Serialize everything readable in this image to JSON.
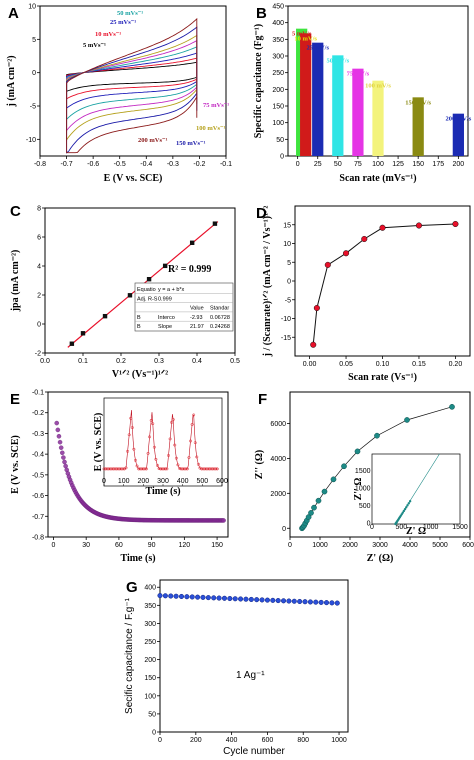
{
  "chart_data": [
    {
      "panel": "A",
      "type": "line",
      "xlabel": "E (V vs. SCE)",
      "ylabel": "j (mA cm⁻²)",
      "xlim": [
        -0.8,
        -0.1
      ],
      "ylim": [
        -12.5,
        10
      ],
      "xticks": [
        "-0.8",
        "-0.7",
        "-0.6",
        "-0.5",
        "-0.4",
        "-0.3",
        "-0.2",
        "-0.1"
      ],
      "yticks": [
        "-10",
        "-5",
        "0",
        "5",
        "10"
      ],
      "series": [
        {
          "label": "5 mVs⁻¹",
          "amp": 1.0,
          "color": "#000000"
        },
        {
          "label": "10 mVs⁻¹",
          "amp": 1.4,
          "color": "#e8102a"
        },
        {
          "label": "25 mVs⁻¹",
          "amp": 1.9,
          "color": "#1d1db8"
        },
        {
          "label": "50 mVs⁻¹",
          "amp": 2.5,
          "color": "#1aa3a3"
        },
        {
          "label": "75 mVs⁻¹",
          "amp": 3.1,
          "color": "#c228c2"
        },
        {
          "label": "100 mVs⁻¹",
          "amp": 3.6,
          "color": "#b5a11c"
        },
        {
          "label": "150 mVs⁻¹",
          "amp": 4.4,
          "color": "#1a1aa8"
        },
        {
          "label": "200 mVs⁻¹",
          "amp": 5.2,
          "color": "#8b1a1a"
        }
      ]
    },
    {
      "panel": "B",
      "type": "bar",
      "xlabel": "Scan rate (mVs⁻¹)",
      "ylabel": "Specific capacitance (Fg⁻¹)",
      "xlim": [
        -12,
        212
      ],
      "ylim": [
        0,
        450
      ],
      "xticks": [
        "0",
        "25",
        "50",
        "75",
        "100",
        "125",
        "150",
        "175",
        "200"
      ],
      "yticks": [
        "0",
        "50",
        "100",
        "150",
        "200",
        "250",
        "300",
        "350",
        "400",
        "450"
      ],
      "bars": [
        {
          "x": 5,
          "value": 382,
          "label": "5 mV/s",
          "color": "#3ee43e",
          "labelColor": "#d11a1a"
        },
        {
          "x": 10,
          "value": 368,
          "label": "10 mV/s",
          "color": "#d11a1a",
          "labelColor": "#e0e000"
        },
        {
          "x": 25,
          "value": 340,
          "label": "25 mV/s",
          "color": "#1b2bb3",
          "labelColor": "#1b2bb3"
        },
        {
          "x": 50,
          "value": 302,
          "label": "50 mV/s",
          "color": "#2fe5e5",
          "labelColor": "#2fe5e5"
        },
        {
          "x": 75,
          "value": 262,
          "label": "75 mV/s",
          "color": "#e534e5",
          "labelColor": "#e534e5"
        },
        {
          "x": 100,
          "value": 226,
          "label": "100 mV/s",
          "color": "#f3f37c",
          "labelColor": "#e0d440"
        },
        {
          "x": 150,
          "value": 176,
          "label": "150 mV/s",
          "color": "#8a8a12",
          "labelColor": "#8a8a12"
        },
        {
          "x": 200,
          "value": 127,
          "label": "200 mV/s",
          "color": "#1b2bb3",
          "labelColor": "#1b2bb3"
        }
      ]
    },
    {
      "panel": "C",
      "type": "scatter",
      "xlabel": "V¹ᐟ² (Vs⁻¹)¹ᐟ²",
      "ylabel": "jpa (mA cm⁻²)",
      "xlim": [
        0.0,
        0.5
      ],
      "ylim": [
        -2,
        8
      ],
      "xticks": [
        "0.0",
        "0.1",
        "0.2",
        "0.3",
        "0.4",
        "0.5"
      ],
      "yticks": [
        "-2",
        "0",
        "2",
        "4",
        "6",
        "8"
      ],
      "x": [
        0.0707,
        0.1,
        0.158,
        0.2236,
        0.2739,
        0.3162,
        0.3873,
        0.4472
      ],
      "y": [
        -1.36,
        -0.64,
        0.54,
        1.98,
        3.09,
        4.01,
        5.6,
        6.92
      ],
      "fit_intercept": -2.93,
      "fit_slope": 21.97,
      "annotation": "R² = 0.999",
      "table": {
        "rows": [
          [
            "Equatio",
            "y = a + b*x"
          ],
          [
            "Adj. R-S",
            "0.999"
          ]
        ],
        "header": [
          "",
          "",
          "Value",
          "Standar"
        ],
        "params": [
          [
            "B",
            "Interco",
            "-2.93",
            "0.06728"
          ],
          [
            "B",
            "Slope",
            "21.97",
            "0.24268"
          ]
        ]
      }
    },
    {
      "panel": "D",
      "type": "line",
      "xlabel": "Scan rate (Vs⁻¹)",
      "ylabel": "j / (Scanrate)¹ᐟ² (mA cm⁻² / Vs⁻¹)¹ᐟ²",
      "xlim": [
        -0.02,
        0.22
      ],
      "ylim": [
        -20,
        20
      ],
      "xticks": [
        "0.00",
        "0.05",
        "0.10",
        "0.15",
        "0.20"
      ],
      "yticks": [
        "-15",
        "-10",
        "-5",
        "0",
        "5",
        "10",
        "15"
      ],
      "x": [
        0.005,
        0.01,
        0.025,
        0.05,
        0.075,
        0.1,
        0.15,
        0.2
      ],
      "y": [
        -17,
        -7.2,
        4.3,
        7.4,
        11.2,
        14.2,
        14.8,
        15.2
      ]
    },
    {
      "panel": "E",
      "type": "scatter",
      "xlabel": "Time (s)",
      "ylabel": "E (V vs. SCE)",
      "xlim": [
        -5,
        160
      ],
      "ylim": [
        -0.8,
        -0.1
      ],
      "xticks": [
        "0",
        "30",
        "60",
        "90",
        "120",
        "150"
      ],
      "yticks": [
        "-0.1",
        "-0.2",
        "-0.3",
        "-0.4",
        "-0.5",
        "-0.6",
        "-0.7",
        "-0.8"
      ],
      "inset": {
        "xlabel": "Time (s)",
        "ylabel": "E (V vs. SCE)",
        "xlim": [
          0,
          600
        ],
        "xticks": [
          "0",
          "100",
          "200",
          "300",
          "400",
          "500",
          "600"
        ]
      }
    },
    {
      "panel": "F",
      "type": "line",
      "xlabel": "Z' (Ω)",
      "ylabel": "Z'' (Ω)",
      "xlim": [
        0,
        6000
      ],
      "ylim": [
        -500,
        7800
      ],
      "xticks": [
        "0",
        "1000",
        "2000",
        "3000",
        "4000",
        "5000",
        "6000"
      ],
      "yticks": [
        "0",
        "2000",
        "4000",
        "6000"
      ],
      "x": [
        400,
        430,
        470,
        510,
        560,
        620,
        700,
        800,
        950,
        1150,
        1450,
        1800,
        2250,
        2900,
        3900,
        5400
      ],
      "y": [
        0,
        60,
        150,
        280,
        440,
        640,
        880,
        1180,
        1580,
        2100,
        2800,
        3550,
        4400,
        5300,
        6200,
        6950
      ],
      "inset": {
        "xlabel": "Z' Ω",
        "ylabel": "Z'' Ω",
        "xlim": [
          0,
          1500
        ],
        "ylim": [
          0,
          2000
        ],
        "xticks": [
          "0",
          "500",
          "1000",
          "1500"
        ],
        "yticks": [
          "0",
          "500",
          "1000",
          "1500"
        ]
      }
    },
    {
      "panel": "G",
      "type": "scatter",
      "xlabel": "Cycle number",
      "ylabel": "Secific capacitance / F.g⁻¹",
      "xlim": [
        0,
        1050
      ],
      "ylim": [
        0,
        420
      ],
      "xticks": [
        "0",
        "200",
        "400",
        "600",
        "800",
        "1000"
      ],
      "yticks": [
        "0",
        "50",
        "100",
        "150",
        "200",
        "250",
        "300",
        "350",
        "400"
      ],
      "start": 377,
      "end": 356,
      "annotation": "1 Ag⁻¹"
    }
  ]
}
